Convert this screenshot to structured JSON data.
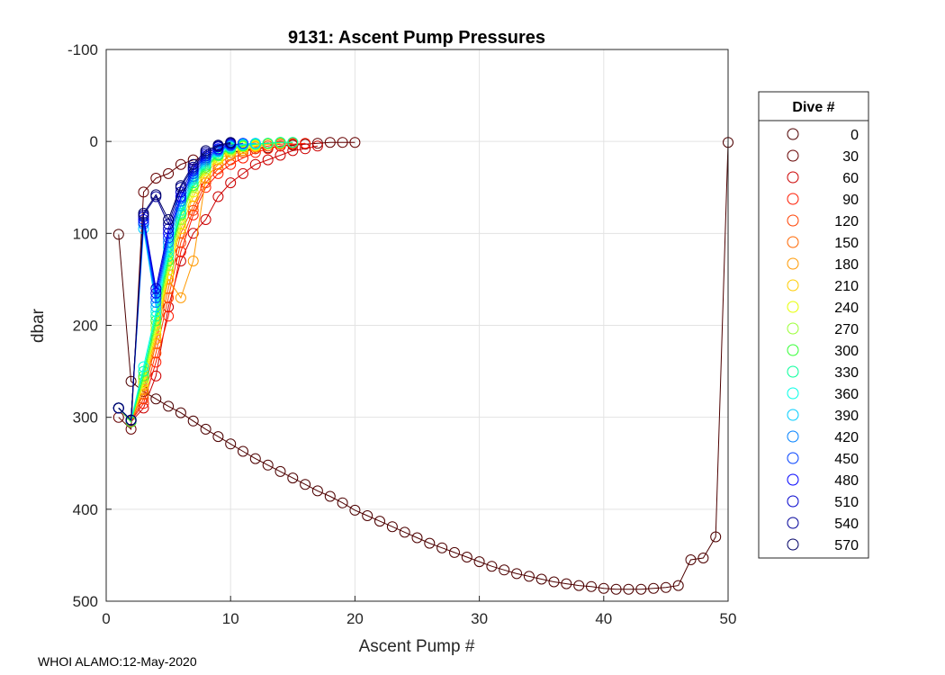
{
  "chart_data": {
    "type": "line",
    "title": "9131: Ascent Pump Pressures",
    "xlabel": "Ascent Pump #",
    "ylabel": "dbar",
    "xlim": [
      0,
      50
    ],
    "ylim": [
      -100,
      500
    ],
    "y_reversed": true,
    "xticks": [
      0,
      10,
      20,
      30,
      40,
      50
    ],
    "yticks": [
      -100,
      0,
      100,
      200,
      300,
      400,
      500
    ],
    "grid": true,
    "legend_title": "Dive #",
    "legend_position": "right",
    "series": [
      {
        "name": "0",
        "color": "#4d0000",
        "x": [
          1,
          2,
          3,
          4,
          5,
          6,
          7,
          8,
          9,
          10,
          11,
          12,
          13,
          14,
          15,
          16,
          17,
          18,
          19,
          20,
          21,
          22,
          23,
          24,
          25,
          26,
          27,
          28,
          29,
          30,
          31,
          32,
          33,
          34,
          35,
          36,
          37,
          38,
          39,
          40,
          41,
          42,
          43,
          44,
          45,
          46,
          47,
          48,
          49,
          50
        ],
        "y": [
          101,
          261,
          272,
          280,
          288,
          295,
          304,
          313,
          321,
          329,
          337,
          345,
          352,
          359,
          366,
          373,
          380,
          386,
          393,
          401,
          407,
          413,
          419,
          425,
          431,
          437,
          442,
          447,
          452,
          457,
          462,
          466,
          470,
          473,
          476,
          479,
          481,
          483,
          484,
          486,
          487,
          487,
          487,
          486,
          485,
          483,
          455,
          453,
          430,
          1
        ]
      },
      {
        "name": "30",
        "color": "#660000",
        "x": [
          1,
          2,
          3,
          4,
          5,
          6,
          7,
          8,
          9,
          10,
          11,
          12,
          13,
          14,
          15,
          16,
          17,
          18,
          19,
          20
        ],
        "y": [
          300,
          313,
          55,
          40,
          35,
          25,
          20,
          18,
          15,
          12,
          10,
          8,
          7,
          5,
          4,
          3,
          2,
          1,
          1,
          1
        ]
      },
      {
        "name": "60",
        "color": "#cc0000",
        "x": [
          1,
          2,
          3,
          4,
          5,
          6,
          7,
          8,
          9,
          10,
          11,
          12,
          13,
          14,
          15,
          16,
          17
        ],
        "y": [
          290,
          305,
          290,
          255,
          180,
          130,
          100,
          85,
          60,
          45,
          35,
          25,
          20,
          15,
          10,
          8,
          5
        ]
      },
      {
        "name": "90",
        "color": "#ff1a00",
        "x": [
          1,
          2,
          3,
          4,
          5,
          6,
          7,
          8,
          9,
          10,
          11,
          12,
          13,
          14,
          15,
          16
        ],
        "y": [
          290,
          304,
          285,
          240,
          190,
          120,
          80,
          50,
          35,
          25,
          18,
          12,
          8,
          5,
          3,
          2
        ]
      },
      {
        "name": "120",
        "color": "#ff4000",
        "x": [
          1,
          2,
          3,
          4,
          5,
          6,
          7,
          8,
          9,
          10,
          11,
          12,
          13,
          14,
          15
        ],
        "y": [
          290,
          304,
          280,
          230,
          170,
          110,
          75,
          45,
          30,
          20,
          12,
          8,
          5,
          3,
          2
        ]
      },
      {
        "name": "150",
        "color": "#ff6600",
        "x": [
          1,
          2,
          3,
          4,
          5,
          6,
          7,
          8,
          9,
          10,
          11,
          12,
          13,
          14
        ],
        "y": [
          290,
          303,
          275,
          220,
          160,
          100,
          70,
          40,
          25,
          15,
          10,
          6,
          3,
          2
        ]
      },
      {
        "name": "180",
        "color": "#ff9900",
        "x": [
          1,
          2,
          3,
          4,
          5,
          6,
          7,
          8,
          9,
          10,
          11,
          12,
          13,
          14
        ],
        "y": [
          290,
          303,
          270,
          215,
          150,
          170,
          130,
          40,
          25,
          15,
          10,
          6,
          3,
          2
        ]
      },
      {
        "name": "210",
        "color": "#ffcc00",
        "x": [
          1,
          2,
          3,
          4,
          5,
          6,
          7,
          8,
          9,
          10,
          11,
          12,
          13,
          14
        ],
        "y": [
          290,
          303,
          265,
          210,
          145,
          95,
          60,
          35,
          20,
          12,
          8,
          5,
          3,
          2
        ]
      },
      {
        "name": "240",
        "color": "#e6ff00",
        "x": [
          1,
          2,
          3,
          4,
          5,
          6,
          7,
          8,
          9,
          10,
          11,
          12,
          13,
          14
        ],
        "y": [
          290,
          303,
          262,
          205,
          140,
          90,
          55,
          32,
          18,
          10,
          6,
          4,
          2,
          1
        ]
      },
      {
        "name": "270",
        "color": "#99ff33",
        "x": [
          1,
          2,
          3,
          4,
          5,
          6,
          7,
          8,
          9,
          10,
          11,
          12,
          13,
          14,
          15
        ],
        "y": [
          290,
          303,
          258,
          200,
          135,
          85,
          50,
          30,
          16,
          9,
          5,
          3,
          2,
          1,
          1
        ]
      },
      {
        "name": "300",
        "color": "#33ff33",
        "x": [
          1,
          2,
          3,
          4,
          5,
          6,
          7,
          8,
          9,
          10,
          11,
          12,
          13,
          14
        ],
        "y": [
          290,
          305,
          255,
          195,
          130,
          80,
          48,
          28,
          15,
          8,
          5,
          3,
          2,
          1
        ]
      },
      {
        "name": "330",
        "color": "#00ff99",
        "x": [
          1,
          2,
          3,
          4,
          5,
          6,
          7,
          8,
          9,
          10,
          11,
          12,
          13,
          14,
          15
        ],
        "y": [
          290,
          303,
          250,
          190,
          125,
          78,
          45,
          26,
          14,
          7,
          4,
          3,
          2,
          1,
          1
        ]
      },
      {
        "name": "360",
        "color": "#00ffe6",
        "x": [
          1,
          2,
          3,
          4,
          5,
          6,
          7,
          8,
          9,
          10,
          11,
          12
        ],
        "y": [
          290,
          303,
          245,
          185,
          120,
          75,
          42,
          24,
          12,
          6,
          3,
          2
        ]
      },
      {
        "name": "390",
        "color": "#00ccff",
        "x": [
          1,
          2,
          3,
          4,
          5,
          6,
          7,
          8,
          9,
          10,
          11,
          12
        ],
        "y": [
          290,
          303,
          95,
          180,
          115,
          70,
          40,
          22,
          11,
          5,
          3,
          2
        ]
      },
      {
        "name": "420",
        "color": "#0080ff",
        "x": [
          1,
          2,
          3,
          4,
          5,
          6,
          7,
          8,
          9,
          10,
          11
        ],
        "y": [
          290,
          303,
          90,
          175,
          110,
          65,
          38,
          20,
          10,
          5,
          2
        ]
      },
      {
        "name": "450",
        "color": "#0040ff",
        "x": [
          1,
          2,
          3,
          4,
          5,
          6,
          7,
          8,
          9,
          10,
          11
        ],
        "y": [
          290,
          303,
          88,
          170,
          105,
          62,
          35,
          18,
          9,
          4,
          2
        ]
      },
      {
        "name": "480",
        "color": "#0000ff",
        "x": [
          1,
          2,
          3,
          4,
          5,
          6,
          7,
          8,
          9,
          10
        ],
        "y": [
          290,
          303,
          85,
          165,
          100,
          60,
          32,
          16,
          8,
          3
        ]
      },
      {
        "name": "510",
        "color": "#0000cc",
        "x": [
          1,
          2,
          3,
          4,
          5,
          6,
          7,
          8,
          9,
          10
        ],
        "y": [
          290,
          303,
          82,
          160,
          95,
          55,
          30,
          14,
          6,
          2
        ]
      },
      {
        "name": "540",
        "color": "#000099",
        "x": [
          1,
          2,
          3,
          4,
          5,
          6,
          7,
          8,
          9,
          10
        ],
        "y": [
          290,
          303,
          80,
          60,
          90,
          50,
          28,
          12,
          5,
          2
        ]
      },
      {
        "name": "570",
        "color": "#000066",
        "x": [
          1,
          2,
          3,
          4,
          5,
          6,
          7,
          8,
          9,
          10
        ],
        "y": [
          290,
          303,
          78,
          58,
          85,
          48,
          25,
          10,
          4,
          1
        ]
      }
    ]
  },
  "footer": "WHOI ALAMO:12-May-2020"
}
